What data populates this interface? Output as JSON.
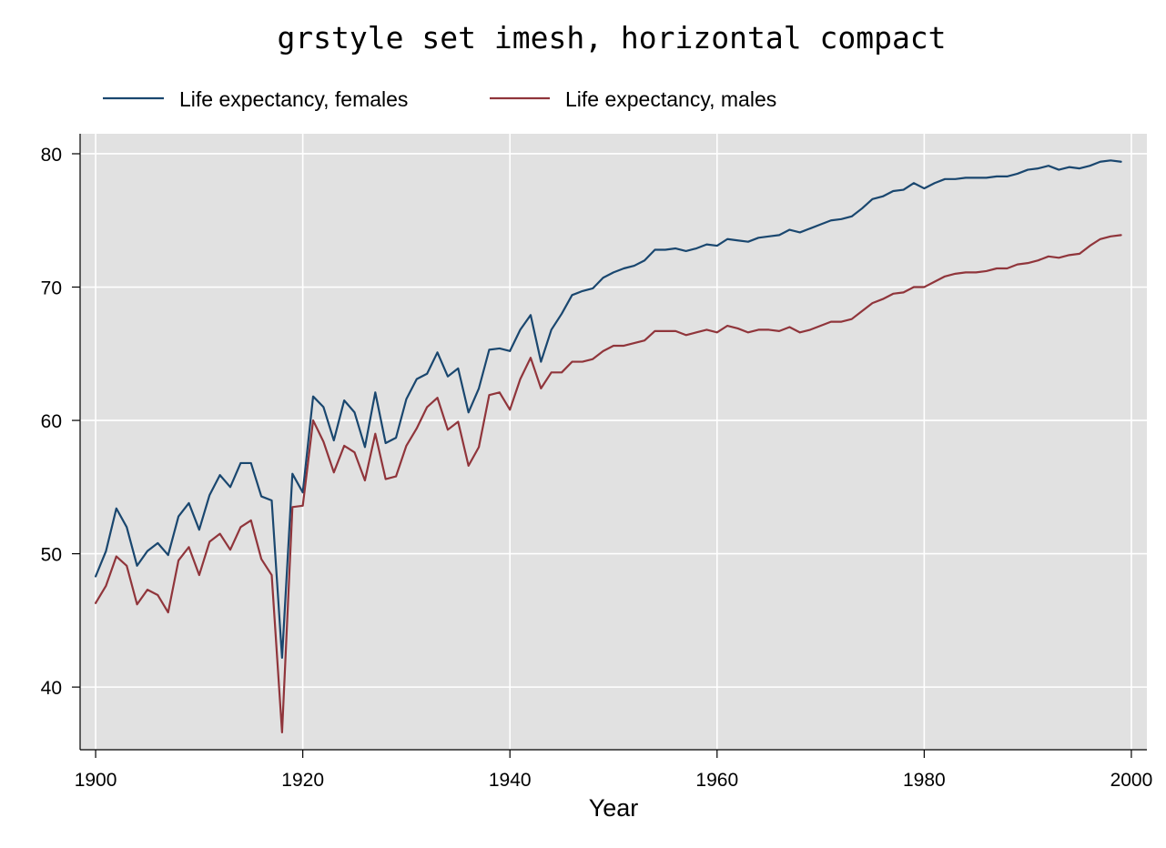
{
  "chart_data": {
    "type": "line",
    "title": "grstyle set imesh, horizontal compact",
    "xlabel": "Year",
    "ylabel": "",
    "xlim": [
      1898.5,
      2001.5
    ],
    "ylim": [
      35.3,
      81.5
    ],
    "xticks": [
      1900,
      1920,
      1940,
      1960,
      1980,
      2000
    ],
    "yticks": [
      40,
      50,
      60,
      70,
      80
    ],
    "grid": true,
    "legend_position": "top-left",
    "plot_background": "#e1e1e1",
    "x": [
      1900,
      1901,
      1902,
      1903,
      1904,
      1905,
      1906,
      1907,
      1908,
      1909,
      1910,
      1911,
      1912,
      1913,
      1914,
      1915,
      1916,
      1917,
      1918,
      1919,
      1920,
      1921,
      1922,
      1923,
      1924,
      1925,
      1926,
      1927,
      1928,
      1929,
      1930,
      1931,
      1932,
      1933,
      1934,
      1935,
      1936,
      1937,
      1938,
      1939,
      1940,
      1941,
      1942,
      1943,
      1944,
      1945,
      1946,
      1947,
      1948,
      1949,
      1950,
      1951,
      1952,
      1953,
      1954,
      1955,
      1956,
      1957,
      1958,
      1959,
      1960,
      1961,
      1962,
      1963,
      1964,
      1965,
      1966,
      1967,
      1968,
      1969,
      1970,
      1971,
      1972,
      1973,
      1974,
      1975,
      1976,
      1977,
      1978,
      1979,
      1980,
      1981,
      1982,
      1983,
      1984,
      1985,
      1986,
      1987,
      1988,
      1989,
      1990,
      1991,
      1992,
      1993,
      1994,
      1995,
      1996,
      1997,
      1998,
      1999
    ],
    "series": [
      {
        "name": "Life expectancy, females",
        "color": "#1a476f",
        "values": [
          48.3,
          50.2,
          53.4,
          52.0,
          49.1,
          50.2,
          50.8,
          49.9,
          52.8,
          53.8,
          51.8,
          54.4,
          55.9,
          55.0,
          56.8,
          56.8,
          54.3,
          54.0,
          42.2,
          56.0,
          54.6,
          61.8,
          61.0,
          58.5,
          61.5,
          60.6,
          58.0,
          62.1,
          58.3,
          58.7,
          61.6,
          63.1,
          63.5,
          65.1,
          63.3,
          63.9,
          60.6,
          62.4,
          65.3,
          65.4,
          65.2,
          66.8,
          67.9,
          64.4,
          66.8,
          68.0,
          69.4,
          69.7,
          69.9,
          70.7,
          71.1,
          71.4,
          71.6,
          72.0,
          72.8,
          72.8,
          72.9,
          72.7,
          72.9,
          73.2,
          73.1,
          73.6,
          73.5,
          73.4,
          73.7,
          73.8,
          73.9,
          74.3,
          74.1,
          74.4,
          74.7,
          75.0,
          75.1,
          75.3,
          75.9,
          76.6,
          76.8,
          77.2,
          77.3,
          77.8,
          77.4,
          77.8,
          78.1,
          78.1,
          78.2,
          78.2,
          78.2,
          78.3,
          78.3,
          78.5,
          78.8,
          78.9,
          79.1,
          78.8,
          79.0,
          78.9,
          79.1,
          79.4,
          79.5,
          79.4
        ]
      },
      {
        "name": "Life expectancy, males",
        "color": "#90353b",
        "values": [
          46.3,
          47.6,
          49.8,
          49.1,
          46.2,
          47.3,
          46.9,
          45.6,
          49.5,
          50.5,
          48.4,
          50.9,
          51.5,
          50.3,
          52.0,
          52.5,
          49.6,
          48.4,
          36.6,
          53.5,
          53.6,
          60.0,
          58.4,
          56.1,
          58.1,
          57.6,
          55.5,
          59.0,
          55.6,
          55.8,
          58.1,
          59.4,
          61.0,
          61.7,
          59.3,
          59.9,
          56.6,
          58.0,
          61.9,
          62.1,
          60.8,
          63.1,
          64.7,
          62.4,
          63.6,
          63.6,
          64.4,
          64.4,
          64.6,
          65.2,
          65.6,
          65.6,
          65.8,
          66.0,
          66.7,
          66.7,
          66.7,
          66.4,
          66.6,
          66.8,
          66.6,
          67.1,
          66.9,
          66.6,
          66.8,
          66.8,
          66.7,
          67.0,
          66.6,
          66.8,
          67.1,
          67.4,
          67.4,
          67.6,
          68.2,
          68.8,
          69.1,
          69.5,
          69.6,
          70.0,
          70.0,
          70.4,
          70.8,
          71.0,
          71.1,
          71.1,
          71.2,
          71.4,
          71.4,
          71.7,
          71.8,
          72.0,
          72.3,
          72.2,
          72.4,
          72.5,
          73.1,
          73.6,
          73.8,
          73.9
        ]
      }
    ]
  }
}
